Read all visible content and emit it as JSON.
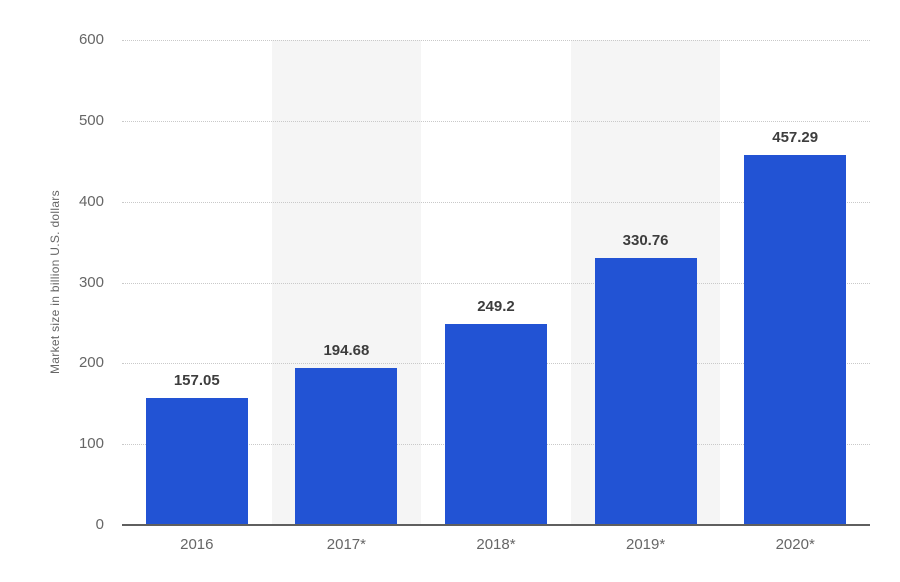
{
  "chart_data": {
    "type": "bar",
    "categories": [
      "2016",
      "2017*",
      "2018*",
      "2019*",
      "2020*"
    ],
    "values": [
      157.05,
      194.68,
      249.2,
      330.76,
      457.29
    ],
    "value_labels": [
      "157.05",
      "194.68",
      "249.2",
      "330.76",
      "457.29"
    ],
    "title": "",
    "xlabel": "",
    "ylabel": "Market size in billion U.S. dollars",
    "ylim": [
      0,
      600
    ],
    "yticks": [
      0,
      100,
      200,
      300,
      400,
      500,
      600
    ],
    "grid": "horizontal-dotted",
    "legend": "none",
    "bar_color": "#2253d4",
    "striped_columns": [
      1,
      3
    ],
    "stripe_color": "#f5f5f5",
    "gridline_color": "#c9c9c9",
    "axis_line_color": "#5f5f5f",
    "tick_label_color": "#666666",
    "value_label_color": "#3d3d3d"
  }
}
